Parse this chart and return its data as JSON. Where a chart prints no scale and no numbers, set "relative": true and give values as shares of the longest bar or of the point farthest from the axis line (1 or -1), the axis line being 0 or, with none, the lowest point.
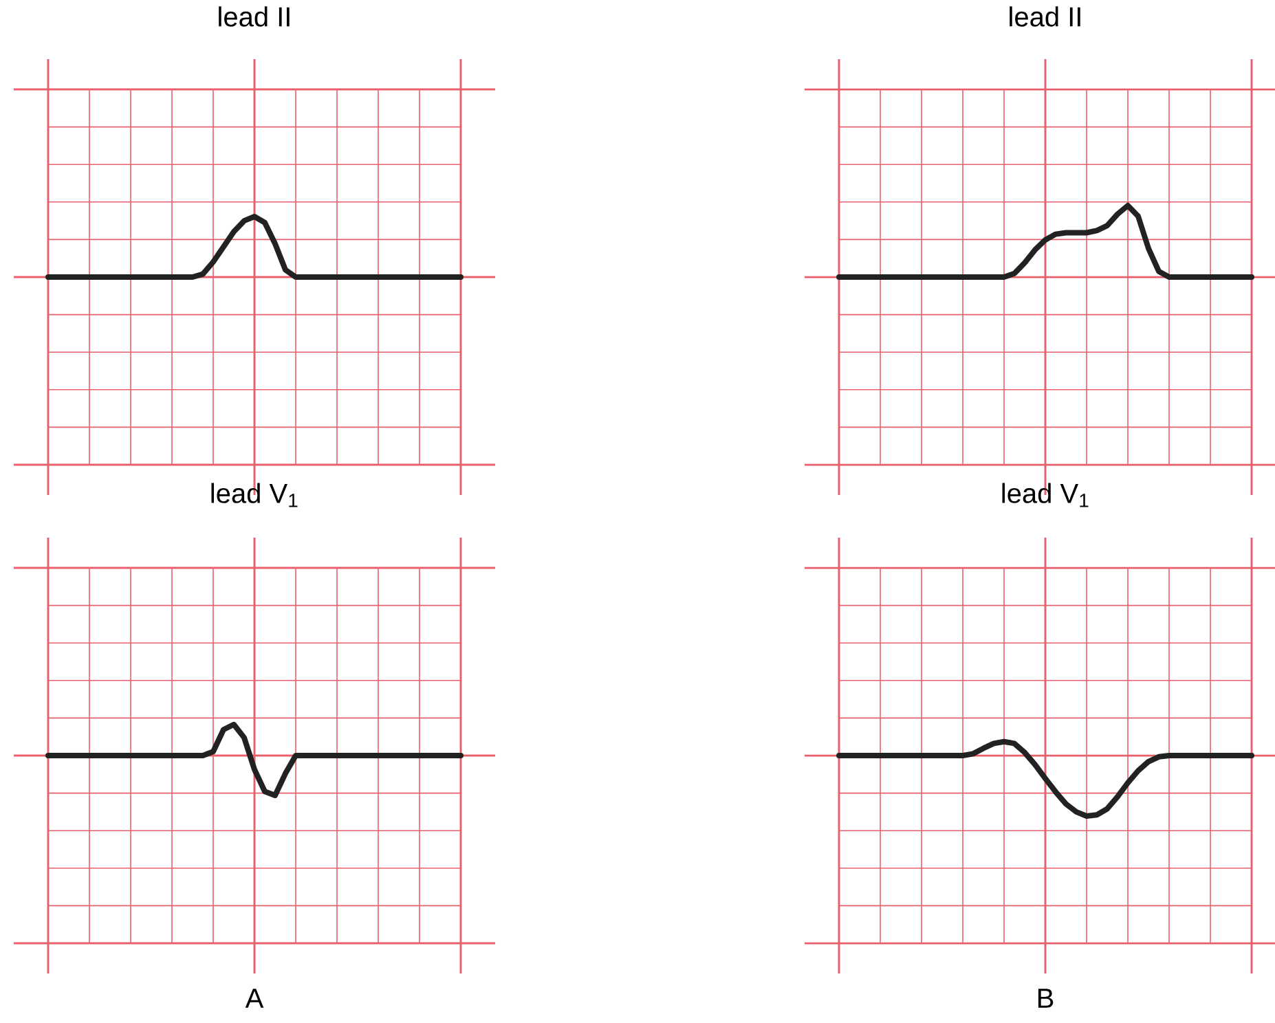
{
  "chart_data": [
    {
      "type": "line",
      "title": "lead II",
      "relative": true,
      "grid": true,
      "categories": [
        null,
        null,
        null,
        null,
        null,
        null,
        null,
        null,
        null,
        null,
        null,
        null,
        null,
        null,
        null,
        null,
        null,
        null,
        null,
        null,
        null,
        null,
        null,
        null,
        null,
        null,
        null,
        null,
        null,
        null,
        null,
        null,
        null,
        null,
        null,
        null,
        null,
        null,
        null,
        null,
        null
      ],
      "series": [
        {
          "color": "#222222",
          "values": [
            0,
            0,
            0,
            0,
            0,
            0,
            0,
            0,
            0,
            0,
            0,
            0,
            0,
            0,
            0,
            0.05,
            0.25,
            0.5,
            0.75,
            0.93,
            1,
            0.9,
            0.55,
            0.12,
            0,
            0,
            0,
            0,
            0,
            0,
            0,
            0,
            0,
            0,
            0,
            0,
            0,
            0,
            0,
            0,
            0
          ]
        }
      ]
    },
    {
      "type": "line",
      "title": "lead II",
      "relative": true,
      "grid": true,
      "categories": [
        null,
        null,
        null,
        null,
        null,
        null,
        null,
        null,
        null,
        null,
        null,
        null,
        null,
        null,
        null,
        null,
        null,
        null,
        null,
        null,
        null,
        null,
        null,
        null,
        null,
        null,
        null,
        null,
        null,
        null,
        null,
        null,
        null,
        null,
        null,
        null,
        null,
        null,
        null,
        null,
        null
      ],
      "series": [
        {
          "color": "#222222",
          "values": [
            0,
            0,
            0,
            0,
            0,
            0,
            0,
            0,
            0,
            0,
            0,
            0,
            0,
            0,
            0,
            0,
            0,
            0.05,
            0.2,
            0.38,
            0.52,
            0.6,
            0.62,
            0.62,
            0.62,
            0.65,
            0.72,
            0.88,
            1,
            0.85,
            0.4,
            0.08,
            0,
            0,
            0,
            0,
            0,
            0,
            0,
            0,
            0
          ]
        }
      ]
    },
    {
      "type": "line",
      "title": "lead V$_{1}$",
      "xlabel": "A",
      "relative": true,
      "grid": true,
      "ref_lines": [
        {
          "axis": "y",
          "value": 0,
          "color": "#e8606c"
        }
      ],
      "categories": [
        null,
        null,
        null,
        null,
        null,
        null,
        null,
        null,
        null,
        null,
        null,
        null,
        null,
        null,
        null,
        null,
        null,
        null,
        null,
        null,
        null,
        null,
        null,
        null,
        null,
        null,
        null,
        null,
        null,
        null,
        null,
        null,
        null,
        null,
        null,
        null,
        null,
        null,
        null,
        null,
        null
      ],
      "series": [
        {
          "color": "#222222",
          "values": [
            0,
            0,
            0,
            0,
            0,
            0,
            0,
            0,
            0,
            0,
            0,
            0,
            0,
            0,
            0,
            0,
            0.1,
            0.65,
            0.78,
            0.45,
            -0.35,
            -0.9,
            -1,
            -0.45,
            0,
            0,
            0,
            0,
            0,
            0,
            0,
            0,
            0,
            0,
            0,
            0,
            0,
            0,
            0,
            0,
            0
          ]
        }
      ]
    },
    {
      "type": "line",
      "title": "lead V$_{1}$",
      "xlabel": "B",
      "relative": true,
      "grid": true,
      "ref_lines": [
        {
          "axis": "y",
          "value": 0,
          "color": "#e8606c"
        }
      ],
      "categories": [
        null,
        null,
        null,
        null,
        null,
        null,
        null,
        null,
        null,
        null,
        null,
        null,
        null,
        null,
        null,
        null,
        null,
        null,
        null,
        null,
        null,
        null,
        null,
        null,
        null,
        null,
        null,
        null,
        null,
        null,
        null,
        null,
        null,
        null,
        null,
        null,
        null,
        null,
        null,
        null,
        null
      ],
      "series": [
        {
          "color": "#222222",
          "values": [
            0,
            0,
            0,
            0,
            0,
            0,
            0,
            0,
            0,
            0,
            0,
            0,
            0,
            0.03,
            0.12,
            0.2,
            0.23,
            0.2,
            0.05,
            -0.15,
            -0.38,
            -0.6,
            -0.8,
            -0.93,
            -1,
            -0.98,
            -0.88,
            -0.68,
            -0.45,
            -0.25,
            -0.1,
            -0.02,
            0,
            0,
            0,
            0,
            0,
            0,
            0,
            0,
            0
          ]
        }
      ]
    }
  ]
}
